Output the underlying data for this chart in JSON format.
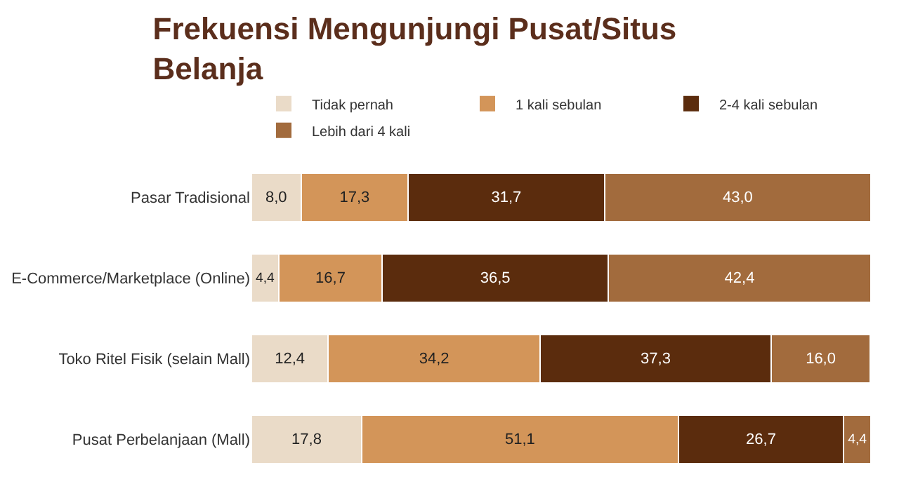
{
  "chart_data": {
    "type": "bar",
    "orientation": "horizontal",
    "stacked": true,
    "title": "Frekuensi Mengunjungi Pusat/Situs Belanja",
    "legend": "top",
    "categories": [
      "Pasar Tradisional",
      "E-Commerce/Marketplace (Online)",
      "Toko Ritel Fisik (selain Mall)",
      "Pusat Perbelanjaan (Mall)"
    ],
    "series": [
      {
        "name": "Tidak pernah",
        "color": "#eadbc8",
        "values": [
          8.0,
          4.4,
          12.4,
          17.8
        ],
        "value_labels": [
          "8,0",
          "4,4",
          "12,4",
          "17,8"
        ]
      },
      {
        "name": "1 kali sebulan",
        "color": "#d39559",
        "values": [
          17.3,
          16.7,
          34.2,
          51.1
        ],
        "value_labels": [
          "17,3",
          "16,7",
          "34,2",
          "51,1"
        ]
      },
      {
        "name": "2-4 kali sebulan",
        "color": "#5b2c0d",
        "values": [
          31.7,
          36.5,
          37.3,
          26.7
        ],
        "value_labels": [
          "31,7",
          "36,5",
          "37,3",
          "26,7"
        ]
      },
      {
        "name": "Lebih dari 4 kali",
        "color": "#a26b3d",
        "values": [
          43.0,
          42.4,
          16.0,
          4.4
        ],
        "value_labels": [
          "43,0",
          "42,4",
          "16,0",
          "4,4"
        ]
      }
    ]
  }
}
